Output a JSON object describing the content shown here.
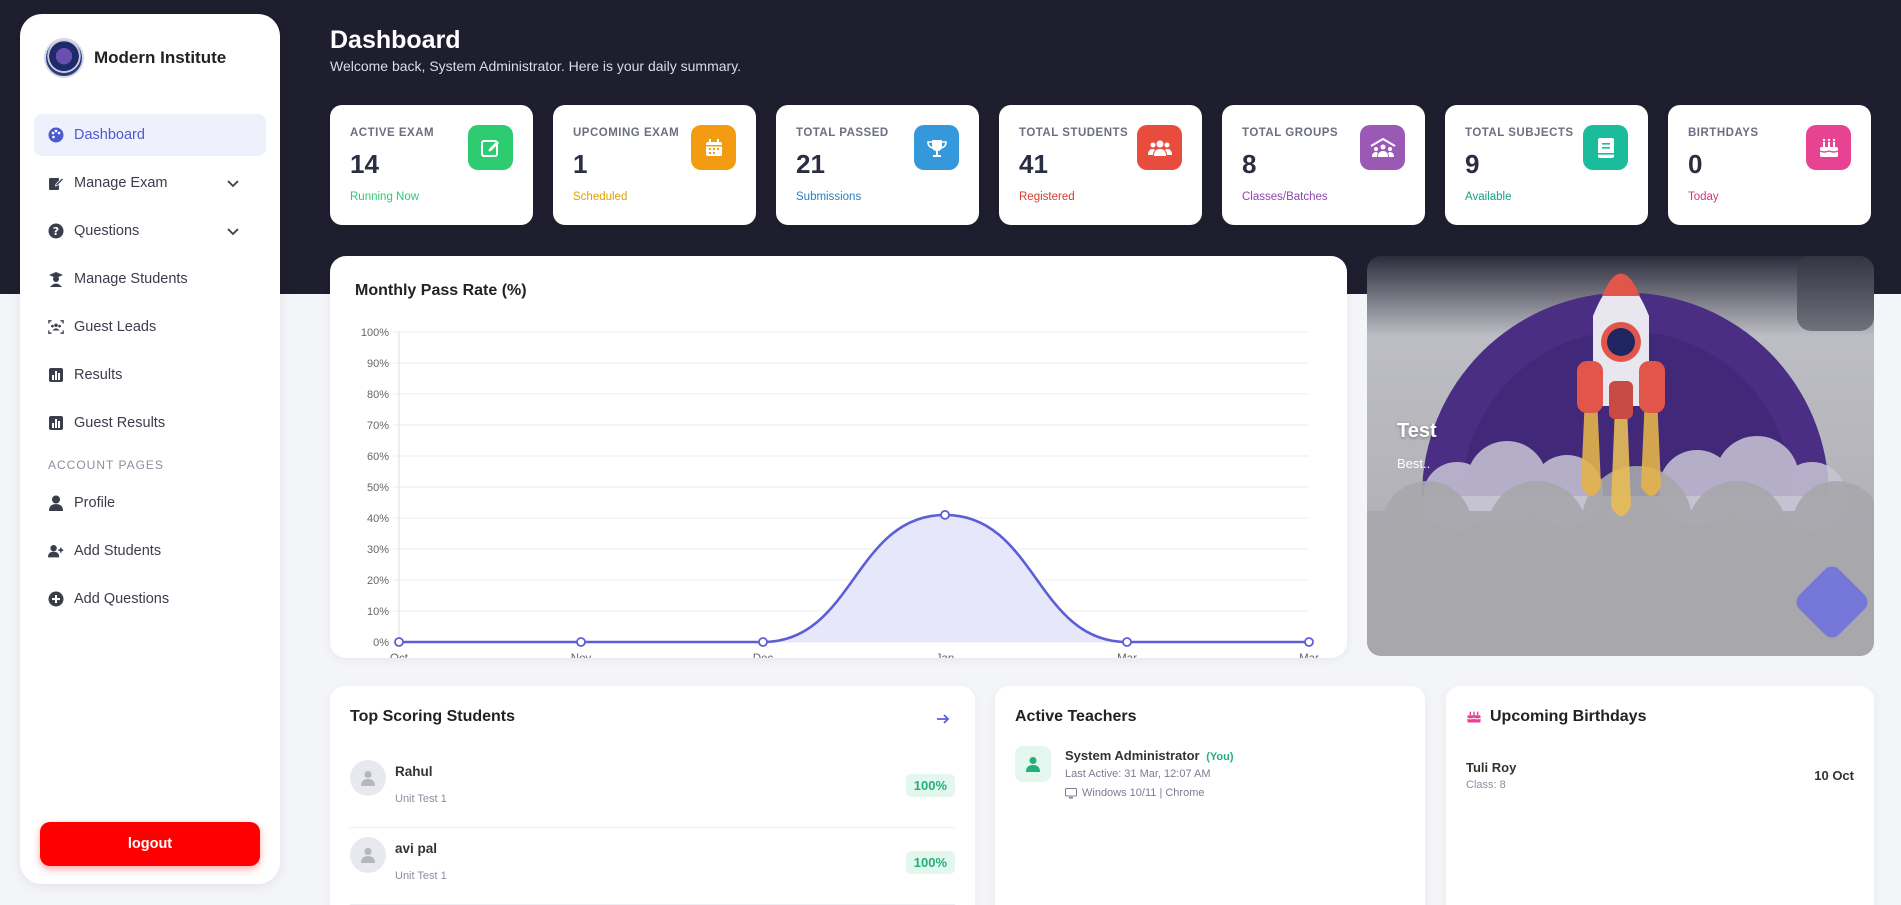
{
  "brand": {
    "name": "Modern Institute"
  },
  "sidebar": {
    "items": [
      {
        "label": "Dashboard",
        "icon": "palette-icon",
        "active": true
      },
      {
        "label": "Manage Exam",
        "icon": "edit-icon",
        "expandable": true
      },
      {
        "label": "Questions",
        "icon": "question-icon",
        "expandable": true
      },
      {
        "label": "Manage Students",
        "icon": "graduate-icon"
      },
      {
        "label": "Guest Leads",
        "icon": "users-frame-icon"
      },
      {
        "label": "Results",
        "icon": "bar-chart-icon"
      },
      {
        "label": "Guest Results",
        "icon": "bar-chart-icon"
      }
    ],
    "section_label": "ACCOUNT PAGES",
    "account_items": [
      {
        "label": "Profile",
        "icon": "user-icon"
      },
      {
        "label": "Add Students",
        "icon": "user-plus-icon"
      },
      {
        "label": "Add Questions",
        "icon": "plus-circle-icon"
      }
    ],
    "logout_label": "logout"
  },
  "header": {
    "title": "Dashboard",
    "subtitle": "Welcome back, System Administrator. Here is your daily summary."
  },
  "stats": [
    {
      "label": "ACTIVE EXAM",
      "value": "14",
      "note": "Running Now",
      "color": "#2ecc71",
      "icon": "edit-icon"
    },
    {
      "label": "UPCOMING EXAM",
      "value": "1",
      "note": "Scheduled",
      "color": "#f39c12",
      "icon": "calendar-icon"
    },
    {
      "label": "TOTAL PASSED",
      "value": "21",
      "note": "Submissions",
      "color": "#3498db",
      "icon": "trophy-icon"
    },
    {
      "label": "TOTAL STUDENTS",
      "value": "41",
      "note": "Registered",
      "color": "#e74c3c",
      "icon": "users-icon"
    },
    {
      "label": "TOTAL GROUPS",
      "value": "8",
      "note": "Classes/Batches",
      "color": "#9b59b6",
      "icon": "groups-icon"
    },
    {
      "label": "TOTAL SUBJECTS",
      "value": "9",
      "note": "Available",
      "color": "#1abc9c",
      "icon": "book-icon"
    },
    {
      "label": "BIRTHDAYS",
      "value": "0",
      "note": "Today",
      "color": "#e84393",
      "icon": "cake-icon"
    }
  ],
  "chart_data": {
    "type": "area",
    "title": "Monthly Pass Rate (%)",
    "categories": [
      "Oct",
      "Nov",
      "Dec",
      "Jan",
      "Mar",
      "Mar"
    ],
    "values": [
      0,
      0,
      0,
      41,
      0,
      0
    ],
    "ylim": [
      0,
      100
    ],
    "yticks": [
      "0%",
      "10%",
      "20%",
      "30%",
      "40%",
      "50%",
      "60%",
      "70%",
      "80%",
      "90%",
      "100%"
    ],
    "grid": true,
    "line_color": "#5b5fd6",
    "fill_color": "#e3e4fb"
  },
  "promo": {
    "title": "Test",
    "subtitle": "Best.."
  },
  "top_students": {
    "title": "Top Scoring Students",
    "rows": [
      {
        "name": "Rahul",
        "test": "Unit Test 1",
        "score": "100%"
      },
      {
        "name": "avi pal",
        "test": "Unit Test 1",
        "score": "100%"
      }
    ]
  },
  "teachers": {
    "title": "Active Teachers",
    "items": [
      {
        "name": "System Administrator",
        "tag": "(You)",
        "last_active": "Last Active: 31 Mar, 12:07 AM",
        "device": "Windows 10/11 | Chrome"
      }
    ]
  },
  "birthdays": {
    "title": "Upcoming Birthdays",
    "items": [
      {
        "name": "Tuli Roy",
        "class": "Class: 8",
        "date": "10 Oct"
      }
    ]
  }
}
